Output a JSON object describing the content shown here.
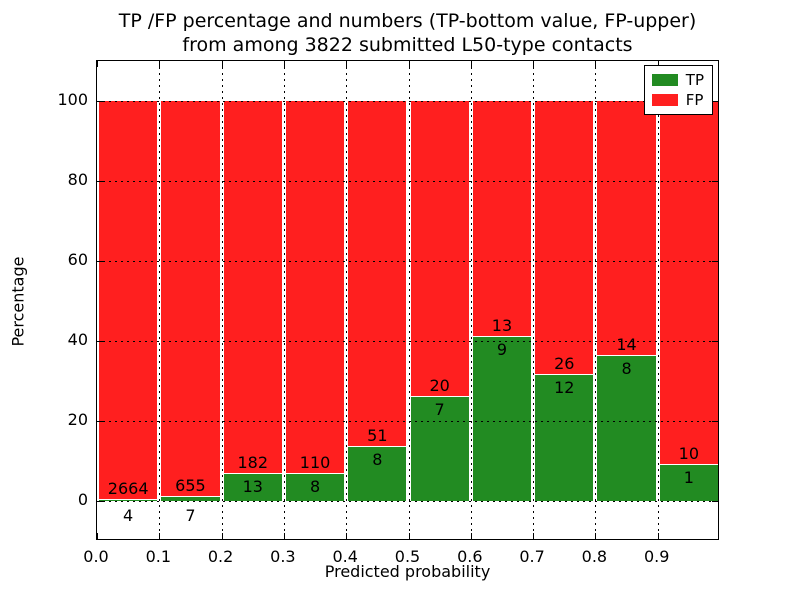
{
  "chart_data": {
    "type": "bar",
    "stacked": true,
    "normalized_to_percent": true,
    "title_line1": "TP /FP percentage and numbers (TP-bottom value, FP-upper)",
    "title_line2": "from among 3822 submitted L50-type contacts",
    "total_contacts": 3822,
    "xlabel": "Predicted probability",
    "ylabel": "Percentage",
    "xlim": [
      0.0,
      1.0
    ],
    "ylim": [
      -10,
      110
    ],
    "grid": true,
    "legend_position": "upper right",
    "categories": [
      "0.0-0.1",
      "0.1-0.2",
      "0.2-0.3",
      "0.3-0.4",
      "0.4-0.5",
      "0.5-0.6",
      "0.6-0.7",
      "0.7-0.8",
      "0.8-0.9",
      "0.9-1.0"
    ],
    "xticks": [
      "0.0",
      "0.1",
      "0.2",
      "0.3",
      "0.4",
      "0.5",
      "0.6",
      "0.7",
      "0.8",
      "0.9"
    ],
    "yticks": [
      0,
      20,
      40,
      60,
      80,
      100
    ],
    "series": [
      {
        "name": "TP",
        "color": "#228B22",
        "values": [
          4,
          7,
          13,
          8,
          8,
          7,
          9,
          12,
          8,
          1
        ]
      },
      {
        "name": "FP",
        "color": "#FF1F1F",
        "values": [
          2664,
          655,
          182,
          110,
          51,
          20,
          13,
          26,
          14,
          10
        ]
      }
    ],
    "tp_percent": [
      0.15,
      1.06,
      6.67,
      6.78,
      13.56,
      25.93,
      40.91,
      31.58,
      36.36,
      9.09
    ]
  }
}
